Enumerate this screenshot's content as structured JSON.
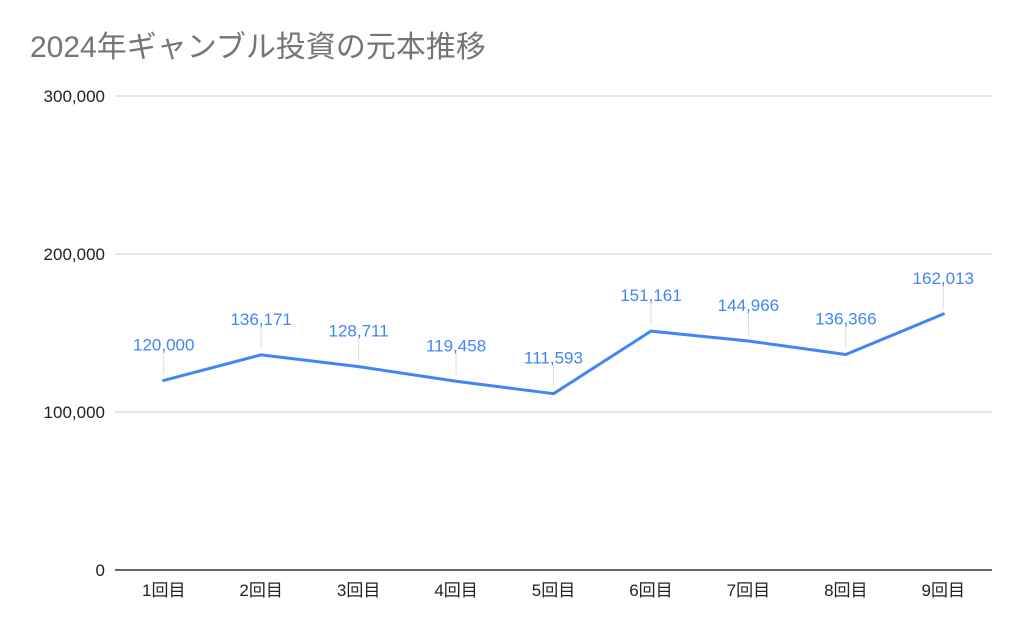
{
  "chart_data": {
    "type": "line",
    "title": "2024年ギャンブル投資の元本推移",
    "xlabel": "",
    "ylabel": "",
    "categories": [
      "1回目",
      "2回目",
      "3回目",
      "4回目",
      "5回目",
      "6回目",
      "7回目",
      "8回目",
      "9回目"
    ],
    "series": [
      {
        "values": [
          120000,
          136171,
          128711,
          119458,
          111593,
          151161,
          144966,
          136366,
          162013
        ],
        "data_labels": [
          "120,000",
          "136,171",
          "128,711",
          "119,458",
          "111,593",
          "151,161",
          "144,966",
          "136,366",
          "162,013"
        ],
        "color": "#4285f4"
      }
    ],
    "ylim": [
      0,
      300000
    ],
    "yticks": [
      0,
      100000,
      200000,
      300000
    ],
    "ytick_labels": [
      "0",
      "100,000",
      "200,000",
      "300,000"
    ],
    "grid": true,
    "legend": "none"
  }
}
